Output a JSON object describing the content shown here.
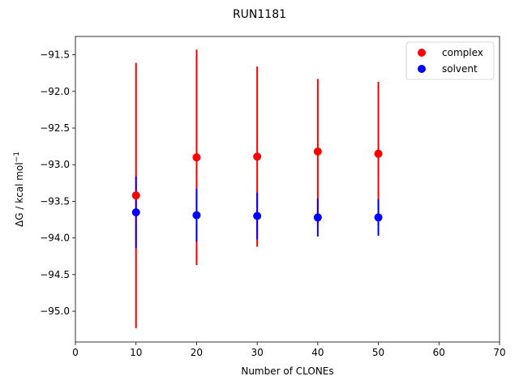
{
  "chart_data": {
    "type": "scatter",
    "title": "RUN1181",
    "xlabel": "Number of CLONEs",
    "ylabel_main": "ΔG / kcal mol",
    "ylabel_sup": "−1",
    "xlim": [
      0,
      70
    ],
    "ylim": [
      -95.42,
      -91.25
    ],
    "xticks": [
      0,
      10,
      20,
      30,
      40,
      50,
      60,
      70
    ],
    "xtick_labels": [
      "0",
      "10",
      "20",
      "30",
      "40",
      "50",
      "60",
      "70"
    ],
    "yticks": [
      -95.0,
      -94.5,
      -94.0,
      -93.5,
      -93.0,
      -92.5,
      -92.0,
      -91.5
    ],
    "ytick_labels": [
      "−95.0",
      "−94.5",
      "−94.0",
      "−93.5",
      "−93.0",
      "−92.5",
      "−92.0",
      "−91.5"
    ],
    "grid": false,
    "legend_position": "top-right",
    "series": [
      {
        "name": "complex",
        "color": "#ff0000",
        "x": [
          10,
          20,
          30,
          40,
          50
        ],
        "y": [
          -93.42,
          -92.9,
          -92.89,
          -92.82,
          -92.85
        ],
        "err": [
          1.81,
          1.47,
          1.23,
          0.99,
          0.98
        ]
      },
      {
        "name": "solvent",
        "color": "#0000ff",
        "x": [
          10,
          20,
          30,
          40,
          50
        ],
        "y": [
          -93.65,
          -93.69,
          -93.7,
          -93.72,
          -93.72
        ],
        "err": [
          0.49,
          0.36,
          0.32,
          0.26,
          0.25
        ]
      }
    ]
  }
}
